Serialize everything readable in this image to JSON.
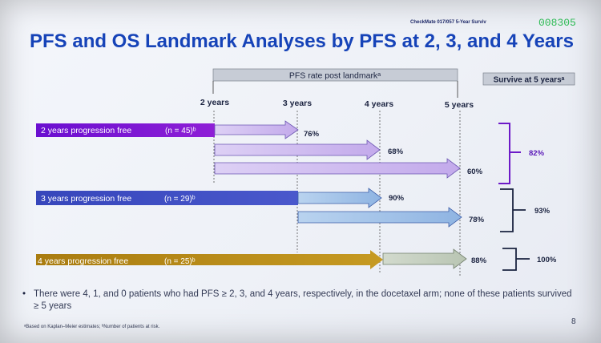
{
  "header": {
    "study_ref": "CheckMate 017/057 5-Year Surviv",
    "overlay_code": "008305",
    "title": "PFS and OS Landmark Analyses by PFS at 2, 3, and 4 Years"
  },
  "diagram": {
    "landmark_header": "PFS rate post landmarkᵃ",
    "survive_header": "Survive at 5 yearsᵃ",
    "timepoints": [
      "2 years",
      "3 years",
      "4 years",
      "5 years"
    ],
    "groups": [
      {
        "label": "2 years progression free",
        "n_label": "(n = 45)ᵇ",
        "color": "#7413d0",
        "arrow_color": "#c9b4ee",
        "rates": [
          "76%",
          "68%",
          "60%"
        ],
        "survival": "82%"
      },
      {
        "label": "3 years progression free",
        "n_label": "(n = 29)ᵇ",
        "color": "#3a4fc0",
        "arrow_color": "#a8c4e8",
        "rates": [
          "90%",
          "78%"
        ],
        "survival": "93%"
      },
      {
        "label": "4 years progression free",
        "n_label": "(n = 25)ᵇ",
        "color": "#b8860b",
        "arrow_color": "#cbd3c6",
        "rates": [
          "88%"
        ],
        "survival": "100%"
      }
    ]
  },
  "bullet": {
    "marker": "•",
    "text": "There were 4, 1, and 0 patients who had PFS ≥ 2, 3, and 4 years, respectively, in the docetaxel arm; none of these patients survived ≥ 5 years"
  },
  "footnote": "ᵃBased on Kaplan–Meier estimates; ᵇNumber of patients at risk.",
  "page_number": "8"
}
